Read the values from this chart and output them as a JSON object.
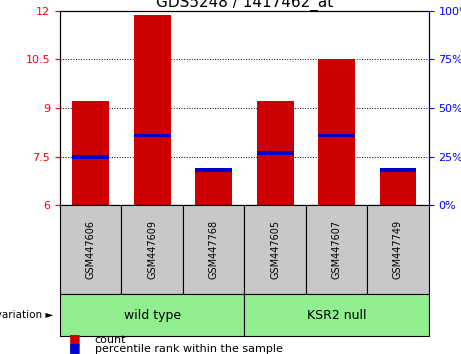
{
  "title": "GDS5248 / 1417462_at",
  "samples": [
    "GSM447606",
    "GSM447609",
    "GSM447768",
    "GSM447605",
    "GSM447607",
    "GSM447749"
  ],
  "bar_bottom": 6,
  "bar_tops": [
    9.2,
    11.85,
    7.15,
    9.2,
    10.5,
    7.15
  ],
  "percentile_values": [
    7.5,
    8.15,
    7.1,
    7.6,
    8.15,
    7.1
  ],
  "ylim_left": [
    6,
    12
  ],
  "ylim_right": [
    0,
    100
  ],
  "yticks_left": [
    6,
    7.5,
    9,
    10.5,
    12
  ],
  "yticks_right": [
    0,
    25,
    50,
    75,
    100
  ],
  "bar_color": "#CC0000",
  "percentile_color": "#0000CC",
  "bar_width": 0.6,
  "grid_lines": [
    7.5,
    9.0,
    10.5
  ],
  "legend_count_label": "count",
  "legend_percentile_label": "percentile rank within the sample",
  "sample_area_color": "#C8C8C8",
  "wildtype_color": "#90EE90",
  "ksrnull_color": "#90EE90",
  "title_fontsize": 11,
  "tick_fontsize": 8,
  "sample_fontsize": 7,
  "group_fontsize": 9,
  "legend_fontsize": 8
}
